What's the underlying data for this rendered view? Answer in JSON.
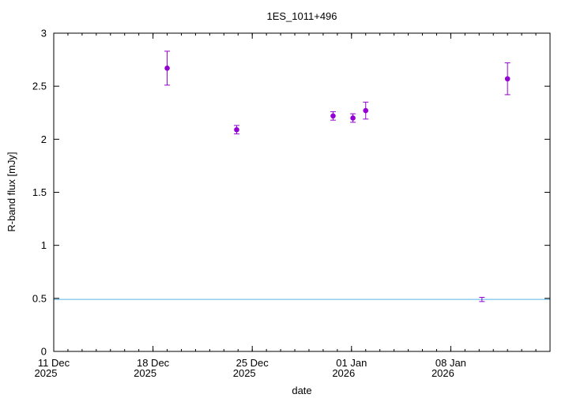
{
  "chart_data": {
    "type": "scatter",
    "title": "1ES_1011+496",
    "xlabel": "date",
    "ylabel": "R-band flux [mJy]",
    "xlim": [
      "2025-12-11",
      "2026-01-15"
    ],
    "ylim": [
      0,
      3
    ],
    "y_ticks": [
      0,
      0.5,
      1,
      1.5,
      2,
      2.5,
      3
    ],
    "y_tick_labels": [
      "0",
      "0.5",
      "1",
      "1.5",
      "2",
      "2.5",
      "3"
    ],
    "x_ticks": [
      {
        "date": "2025-12-11",
        "line1": "11 Dec",
        "line2": "2025"
      },
      {
        "date": "2025-12-18",
        "line1": "18 Dec",
        "line2": "2025"
      },
      {
        "date": "2025-12-25",
        "line1": "25 Dec",
        "line2": "2025"
      },
      {
        "date": "2026-01-01",
        "line1": "01 Jan",
        "line2": "2026"
      },
      {
        "date": "2026-01-08",
        "line1": "08 Jan",
        "line2": "2026"
      }
    ],
    "grid": false,
    "marker_color": "#9400d3",
    "reference_line_color": "#56b4e9",
    "series": [
      {
        "marker": "filled-circle",
        "points": [
          {
            "date": "2025-12-19",
            "y": 2.67,
            "err": 0.16
          },
          {
            "date": "2025-12-23.9",
            "y": 2.09,
            "err": 0.04
          },
          {
            "date": "2025-12-30.7",
            "y": 2.22,
            "err": 0.04
          },
          {
            "date": "2026-01-01.1",
            "y": 2.2,
            "err": 0.04
          },
          {
            "date": "2026-01-02",
            "y": 2.27,
            "err": 0.08
          },
          {
            "date": "2026-01-12",
            "y": 2.57,
            "err": 0.15
          }
        ]
      },
      {
        "marker": "none",
        "points": [
          {
            "date": "2026-01-10.2",
            "y": 0.49,
            "err": 0.02
          }
        ]
      }
    ],
    "reference_line": {
      "y": 0.49
    }
  }
}
